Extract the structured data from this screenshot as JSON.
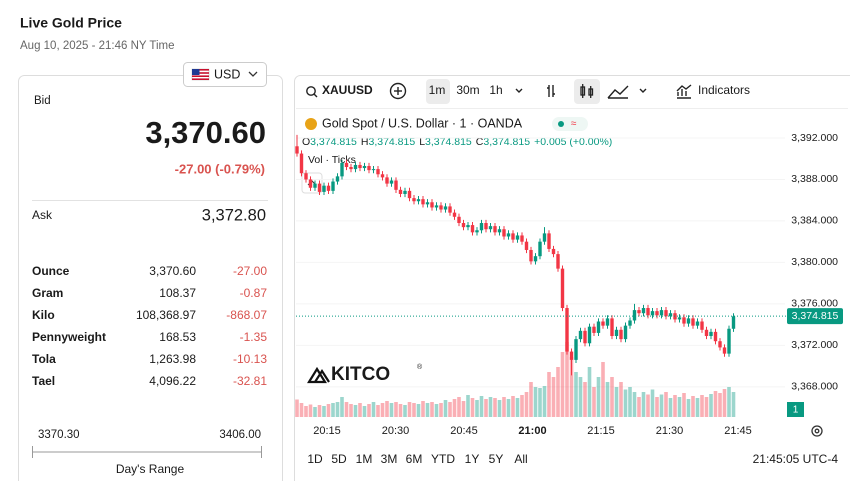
{
  "header": {
    "title": "Live Gold Price",
    "timestamp": "Aug 10, 2025 - 21:46 NY Time"
  },
  "currency": "USD",
  "quote": {
    "bid_label": "Bid",
    "bid": "3,370.60",
    "change": "-27.00 (-0.79%)",
    "ask_label": "Ask",
    "ask": "3,372.80"
  },
  "units": [
    [
      "Ounce",
      "3,370.60",
      "-27.00"
    ],
    [
      "Gram",
      "108.37",
      "-0.87"
    ],
    [
      "Kilo",
      "108,368.97",
      "-868.07"
    ],
    [
      "Pennyweight",
      "168.53",
      "-1.35"
    ],
    [
      "Tola",
      "1,263.98",
      "-10.13"
    ],
    [
      "Tael",
      "4,096.22",
      "-32.81"
    ]
  ],
  "range": {
    "low": "3370.30",
    "high": "3406.00",
    "label": "Day's Range"
  },
  "chart": {
    "type": "candlestick",
    "symbol": "XAUUSD",
    "intervals": [
      "1m",
      "30m",
      "1h"
    ],
    "indicators": "Indicators",
    "legend_title": "Gold Spot / U.S. Dollar · 1 · OANDA",
    "ohlc": [
      {
        "label": "O",
        "value": "3,374.815"
      },
      {
        "label": "H",
        "value": "3,374.815"
      },
      {
        "label": "L",
        "value": "3,374.815"
      },
      {
        "label": "C",
        "value": "3,374.815"
      }
    ],
    "ohlc_change": "+0.005 (+0.00%)",
    "volume_label": "Vol · Ticks",
    "logo": "KITCO",
    "up_color": "#089981",
    "down_color": "#f23645",
    "ylim": [
      3364.8,
      3394.7
    ],
    "yticks": [
      {
        "value": 3392,
        "label": "3,392.000"
      },
      {
        "value": 3388,
        "label": "3,388.000"
      },
      {
        "value": 3384,
        "label": "3,384.000"
      },
      {
        "value": 3380,
        "label": "3,380.000"
      },
      {
        "value": 3376,
        "label": "3,376.000"
      },
      {
        "value": 3372,
        "label": "3,372.000"
      },
      {
        "value": 3368,
        "label": "3,368.000"
      }
    ],
    "last_price": {
      "value": 3374.815,
      "label": "3,374.815"
    },
    "xticks": [
      "20:15",
      "20:30",
      "20:45",
      "21:00",
      "21:15",
      "21:30",
      "21:45"
    ],
    "candles": [
      [
        3391.2,
        3392.3,
        3390.2,
        3390.5
      ],
      [
        3390.5,
        3390.8,
        3388.3,
        3388.6
      ],
      [
        3388.6,
        3388.9,
        3387.7,
        3388.0
      ],
      [
        3388.0,
        3388.3,
        3386.9,
        3387.2
      ],
      [
        3387.2,
        3387.9,
        3386.9,
        3387.6
      ],
      [
        3387.6,
        3387.9,
        3386.5,
        3386.8
      ],
      [
        3386.8,
        3387.7,
        3386.5,
        3387.4
      ],
      [
        3387.4,
        3387.7,
        3386.6,
        3386.9
      ],
      [
        3386.9,
        3388.1,
        3386.6,
        3387.8
      ],
      [
        3387.8,
        3388.6,
        3387.5,
        3388.3
      ],
      [
        3388.3,
        3389.9,
        3388.0,
        3389.6
      ],
      [
        3389.6,
        3389.9,
        3388.9,
        3389.2
      ],
      [
        3389.2,
        3389.5,
        3388.7,
        3389.0
      ],
      [
        3389.0,
        3389.7,
        3388.7,
        3389.4
      ],
      [
        3389.4,
        3389.7,
        3388.8,
        3389.1
      ],
      [
        3389.1,
        3389.6,
        3388.8,
        3389.3
      ],
      [
        3389.3,
        3389.6,
        3388.6,
        3388.9
      ],
      [
        3388.9,
        3389.3,
        3388.6,
        3389.0
      ],
      [
        3389.0,
        3389.3,
        3388.2,
        3388.5
      ],
      [
        3388.5,
        3388.8,
        3387.9,
        3388.2
      ],
      [
        3388.2,
        3388.5,
        3387.3,
        3387.6
      ],
      [
        3387.6,
        3388.2,
        3387.3,
        3387.9
      ],
      [
        3387.9,
        3388.2,
        3386.7,
        3387.0
      ],
      [
        3387.0,
        3387.3,
        3386.3,
        3386.6
      ],
      [
        3386.6,
        3387.2,
        3386.3,
        3386.9
      ],
      [
        3386.9,
        3387.2,
        3385.9,
        3386.2
      ],
      [
        3386.2,
        3386.5,
        3385.6,
        3385.9
      ],
      [
        3385.9,
        3386.4,
        3385.6,
        3386.1
      ],
      [
        3386.1,
        3386.4,
        3385.3,
        3385.6
      ],
      [
        3385.6,
        3386.1,
        3385.3,
        3385.8
      ],
      [
        3385.8,
        3386.1,
        3385.0,
        3385.3
      ],
      [
        3385.3,
        3385.8,
        3385.0,
        3385.5
      ],
      [
        3385.5,
        3385.8,
        3384.8,
        3385.1
      ],
      [
        3385.1,
        3385.7,
        3384.8,
        3385.4
      ],
      [
        3385.4,
        3385.7,
        3384.5,
        3384.8
      ],
      [
        3384.8,
        3385.1,
        3384.1,
        3384.4
      ],
      [
        3384.4,
        3384.7,
        3383.5,
        3383.8
      ],
      [
        3383.8,
        3384.1,
        3383.1,
        3383.4
      ],
      [
        3383.4,
        3383.9,
        3383.1,
        3383.6
      ],
      [
        3383.6,
        3383.9,
        3382.6,
        3382.9
      ],
      [
        3382.9,
        3383.4,
        3382.6,
        3383.1
      ],
      [
        3383.1,
        3384.1,
        3382.8,
        3383.8
      ],
      [
        3383.8,
        3384.1,
        3382.9,
        3383.2
      ],
      [
        3383.2,
        3383.8,
        3382.9,
        3383.5
      ],
      [
        3383.5,
        3383.8,
        3382.6,
        3382.9
      ],
      [
        3382.9,
        3383.5,
        3382.6,
        3383.2
      ],
      [
        3383.2,
        3383.5,
        3382.2,
        3382.5
      ],
      [
        3382.5,
        3383.1,
        3382.2,
        3382.8
      ],
      [
        3382.8,
        3383.1,
        3381.9,
        3382.2
      ],
      [
        3382.2,
        3382.9,
        3381.9,
        3382.6
      ],
      [
        3382.6,
        3382.9,
        3381.7,
        3382.0
      ],
      [
        3382.0,
        3382.3,
        3380.9,
        3381.2
      ],
      [
        3381.2,
        3381.5,
        3379.8,
        3380.1
      ],
      [
        3380.1,
        3380.9,
        3379.8,
        3380.6
      ],
      [
        3380.6,
        3382.3,
        3380.3,
        3382.0
      ],
      [
        3382.0,
        3383.4,
        3381.7,
        3382.8
      ],
      [
        3382.8,
        3383.1,
        3381.0,
        3381.3
      ],
      [
        3381.3,
        3381.6,
        3380.5,
        3380.8
      ],
      [
        3380.8,
        3381.1,
        3379.1,
        3379.4
      ],
      [
        3379.4,
        3379.7,
        3375.3,
        3375.6
      ],
      [
        3375.6,
        3375.9,
        3371.1,
        3371.4
      ],
      [
        3371.4,
        3371.7,
        3369.1,
        3370.6
      ],
      [
        3370.6,
        3372.9,
        3370.3,
        3372.6
      ],
      [
        3372.6,
        3373.7,
        3372.3,
        3373.4
      ],
      [
        3373.4,
        3373.7,
        3371.9,
        3372.2
      ],
      [
        3372.2,
        3374.1,
        3371.9,
        3373.8
      ],
      [
        3373.8,
        3374.1,
        3372.9,
        3373.2
      ],
      [
        3373.2,
        3374.6,
        3372.9,
        3374.3
      ],
      [
        3374.3,
        3374.6,
        3373.6,
        3373.9
      ],
      [
        3373.9,
        3374.9,
        3373.6,
        3374.6
      ],
      [
        3374.6,
        3374.9,
        3372.6,
        3372.9
      ],
      [
        3372.9,
        3373.8,
        3372.6,
        3373.5
      ],
      [
        3373.5,
        3373.8,
        3372.3,
        3372.6
      ],
      [
        3372.6,
        3374.2,
        3372.3,
        3373.9
      ],
      [
        3373.9,
        3374.7,
        3373.6,
        3374.4
      ],
      [
        3374.4,
        3376.0,
        3374.1,
        3375.4
      ],
      [
        3375.4,
        3375.7,
        3374.8,
        3375.1
      ],
      [
        3375.1,
        3375.9,
        3374.8,
        3375.6
      ],
      [
        3375.6,
        3375.9,
        3374.6,
        3374.9
      ],
      [
        3374.9,
        3375.6,
        3374.6,
        3375.3
      ],
      [
        3375.3,
        3375.6,
        3374.6,
        3374.9
      ],
      [
        3374.9,
        3375.7,
        3374.6,
        3375.4
      ],
      [
        3375.4,
        3375.7,
        3374.5,
        3374.8
      ],
      [
        3374.8,
        3375.4,
        3374.5,
        3375.1
      ],
      [
        3375.1,
        3375.4,
        3374.2,
        3374.5
      ],
      [
        3374.5,
        3375.0,
        3374.2,
        3374.7
      ],
      [
        3374.7,
        3375.0,
        3373.8,
        3374.1
      ],
      [
        3374.1,
        3374.9,
        3373.8,
        3374.6
      ],
      [
        3374.6,
        3374.9,
        3373.6,
        3373.9
      ],
      [
        3373.9,
        3374.6,
        3373.6,
        3374.3
      ],
      [
        3374.3,
        3374.6,
        3373.2,
        3373.5
      ],
      [
        3373.5,
        3373.8,
        3372.6,
        3372.9
      ],
      [
        3372.9,
        3373.6,
        3372.6,
        3373.3
      ],
      [
        3373.3,
        3373.6,
        3372.1,
        3372.4
      ],
      [
        3372.4,
        3372.7,
        3371.5,
        3371.8
      ],
      [
        3371.8,
        3372.1,
        3370.9,
        3371.2
      ],
      [
        3371.2,
        3373.9,
        3370.9,
        3373.6
      ],
      [
        3373.6,
        3375.1,
        3373.3,
        3374.8
      ]
    ],
    "volumes": [
      35,
      28,
      22,
      25,
      20,
      24,
      22,
      26,
      28,
      30,
      40,
      30,
      26,
      24,
      28,
      22,
      26,
      30,
      24,
      28,
      32,
      28,
      30,
      26,
      24,
      30,
      28,
      26,
      32,
      28,
      30,
      26,
      28,
      34,
      30,
      36,
      40,
      32,
      44,
      38,
      34,
      42,
      36,
      40,
      38,
      34,
      40,
      36,
      42,
      38,
      44,
      50,
      70,
      60,
      58,
      62,
      90,
      80,
      100,
      130,
      150,
      120,
      90,
      80,
      70,
      100,
      60,
      80,
      110,
      70,
      80,
      60,
      70,
      55,
      60,
      50,
      40,
      50,
      45,
      55,
      40,
      45,
      50,
      38,
      44,
      40,
      48,
      36,
      42,
      38,
      44,
      40,
      46,
      52,
      48,
      56,
      60,
      50
    ],
    "scale_badge": "1",
    "ranges": [
      "1D",
      "5D",
      "1M",
      "3M",
      "6M",
      "YTD",
      "1Y",
      "5Y",
      "All"
    ],
    "clock": "21:45:05 UTC-4"
  }
}
